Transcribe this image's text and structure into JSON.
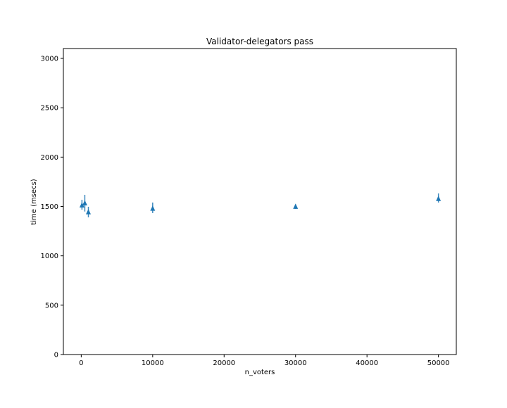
{
  "chart_data": {
    "type": "scatter",
    "title": "Validator-delegators pass",
    "xlabel": "n_voters",
    "ylabel": "time (msecs)",
    "xlim": [
      -2500,
      52500
    ],
    "ylim": [
      0,
      3100
    ],
    "xticks": [
      0,
      10000,
      20000,
      30000,
      40000,
      50000
    ],
    "yticks": [
      0,
      500,
      1000,
      1500,
      2000,
      2500,
      3000
    ],
    "grid": false,
    "marker": "triangle-up",
    "color": "#1f77b4",
    "points": [
      {
        "x": 100,
        "y": 1511,
        "err_low": 1468,
        "err_high": 1568
      },
      {
        "x": 500,
        "y": 1532,
        "err_low": 1449,
        "err_high": 1618
      },
      {
        "x": 1000,
        "y": 1442,
        "err_low": 1390,
        "err_high": 1497
      },
      {
        "x": 10000,
        "y": 1478,
        "err_low": 1433,
        "err_high": 1540
      },
      {
        "x": 30000,
        "y": 1497,
        "err_low": 1475,
        "err_high": 1520
      },
      {
        "x": 50000,
        "y": 1577,
        "err_low": 1540,
        "err_high": 1632
      }
    ]
  }
}
